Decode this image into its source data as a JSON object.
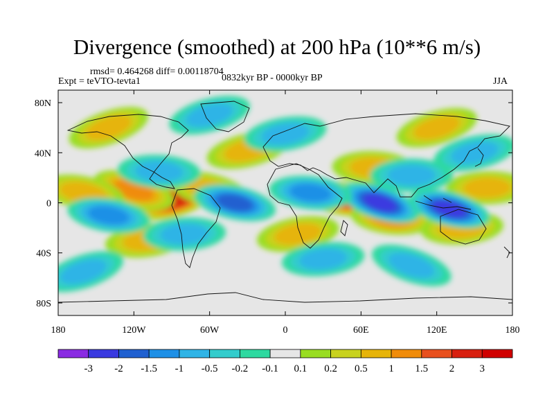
{
  "header": {
    "title": "Divergence (smoothed) at 200 hPa (10**6 m/s)",
    "stats": "rmsd= 0.464268 diff= 0.00118704",
    "experiment": "Expt = teVTO-tevta1",
    "period": "0832kyr BP - 0000kyr BP",
    "season": "JJA"
  },
  "chart_data": {
    "type": "heatmap",
    "title": "Divergence (smoothed) at 200 hPa (10**6 m/s)",
    "projection": "cylindrical equidistant",
    "xlim": [
      -180,
      180
    ],
    "ylim": [
      -90,
      90
    ],
    "x_ticks": [
      {
        "value": -180,
        "label": "180"
      },
      {
        "value": -120,
        "label": "120W"
      },
      {
        "value": -60,
        "label": "60W"
      },
      {
        "value": 0,
        "label": "0"
      },
      {
        "value": 60,
        "label": "60E"
      },
      {
        "value": 120,
        "label": "120E"
      },
      {
        "value": 180,
        "label": "180"
      }
    ],
    "y_ticks": [
      {
        "value": 80,
        "label": "80N"
      },
      {
        "value": 40,
        "label": "40N"
      },
      {
        "value": 0,
        "label": "0"
      },
      {
        "value": -40,
        "label": "40S"
      },
      {
        "value": -80,
        "label": "80S"
      }
    ],
    "colorbar": {
      "levels": [
        "-3",
        "-2",
        "-1.5",
        "-1",
        "-0.5",
        "-0.2",
        "-0.1",
        "0.1",
        "0.2",
        "0.5",
        "1",
        "1.5",
        "2",
        "3"
      ],
      "colors": [
        "#8a2be2",
        "#3a3ae0",
        "#2060d0",
        "#1e90e6",
        "#2fb4e6",
        "#33cccc",
        "#2ed9a0",
        "#e6e6e6",
        "#99dd22",
        "#c8d21e",
        "#e6b40a",
        "#f08c0a",
        "#e8501e",
        "#d82010",
        "#d00000"
      ]
    },
    "features": [
      {
        "lon": -85,
        "lat": 3,
        "value": 2.5
      },
      {
        "lon": -120,
        "lat": 10,
        "value": 1.0
      },
      {
        "lon": -60,
        "lat": 10,
        "value": 0.8
      },
      {
        "lon": -160,
        "lat": 8,
        "value": 0.7
      },
      {
        "lon": 48,
        "lat": 3,
        "value": 2.5
      },
      {
        "lon": 85,
        "lat": -12,
        "value": 1.2
      },
      {
        "lon": 70,
        "lat": 28,
        "value": 0.8
      },
      {
        "lon": 160,
        "lat": 12,
        "value": 0.8
      },
      {
        "lon": 140,
        "lat": -20,
        "value": 0.8
      },
      {
        "lon": -110,
        "lat": -30,
        "value": 0.7
      },
      {
        "lon": 10,
        "lat": -25,
        "value": 0.6
      },
      {
        "lon": -30,
        "lat": 42,
        "value": 0.6
      },
      {
        "lon": 120,
        "lat": 60,
        "value": 0.6
      },
      {
        "lon": -140,
        "lat": 60,
        "value": 0.5
      },
      {
        "lon": 75,
        "lat": 0,
        "value": -2.3
      },
      {
        "lon": 130,
        "lat": -5,
        "value": -2.0
      },
      {
        "lon": -40,
        "lat": 0,
        "value": -1.7
      },
      {
        "lon": -140,
        "lat": -10,
        "value": -1.3
      },
      {
        "lon": 20,
        "lat": 8,
        "value": -1.0
      },
      {
        "lon": -100,
        "lat": 25,
        "value": -0.9
      },
      {
        "lon": 100,
        "lat": 22,
        "value": -0.9
      },
      {
        "lon": -80,
        "lat": -25,
        "value": -0.7
      },
      {
        "lon": 30,
        "lat": -45,
        "value": -0.7
      },
      {
        "lon": 0,
        "lat": 55,
        "value": -0.6
      },
      {
        "lon": 150,
        "lat": 40,
        "value": -0.6
      },
      {
        "lon": -60,
        "lat": 70,
        "value": -0.5
      },
      {
        "lon": -160,
        "lat": -55,
        "value": -0.5
      },
      {
        "lon": 100,
        "lat": -50,
        "value": -0.5
      }
    ]
  }
}
